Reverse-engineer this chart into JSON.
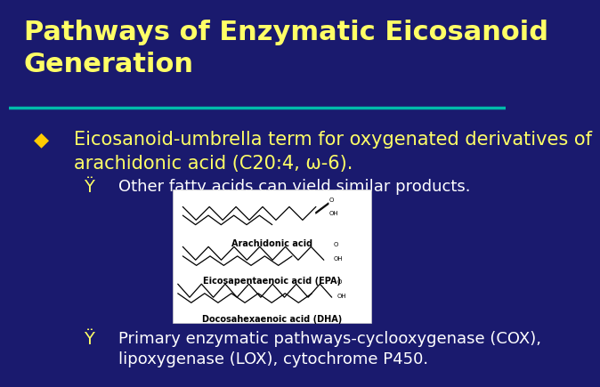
{
  "title": "Pathways of Enzymatic Eicosanoid\nGeneration",
  "title_color": "#FFFF66",
  "bg_color": "#1a1a6e",
  "line_color": "#00BBAA",
  "bullet_color": "#FFCC00",
  "bullet_char": "◆",
  "sub_bullet_char": "Ÿ",
  "text_color": "#FFFF66",
  "sub_text_color": "#FFFFFF",
  "bullet_text": "Eicosanoid-umbrella term for oxygenated derivatives of\narachidonic acid (C20:4, ω-6).",
  "sub_bullet1": "Other fatty acids can yield similar products.",
  "sub_bullet2": "Primary enzymatic pathways-cyclooxygenase (COX),\nlipoxygenase (LOX), cytochrome P450.",
  "title_fontsize": 22,
  "bullet_fontsize": 15,
  "sub_fontsize": 13
}
